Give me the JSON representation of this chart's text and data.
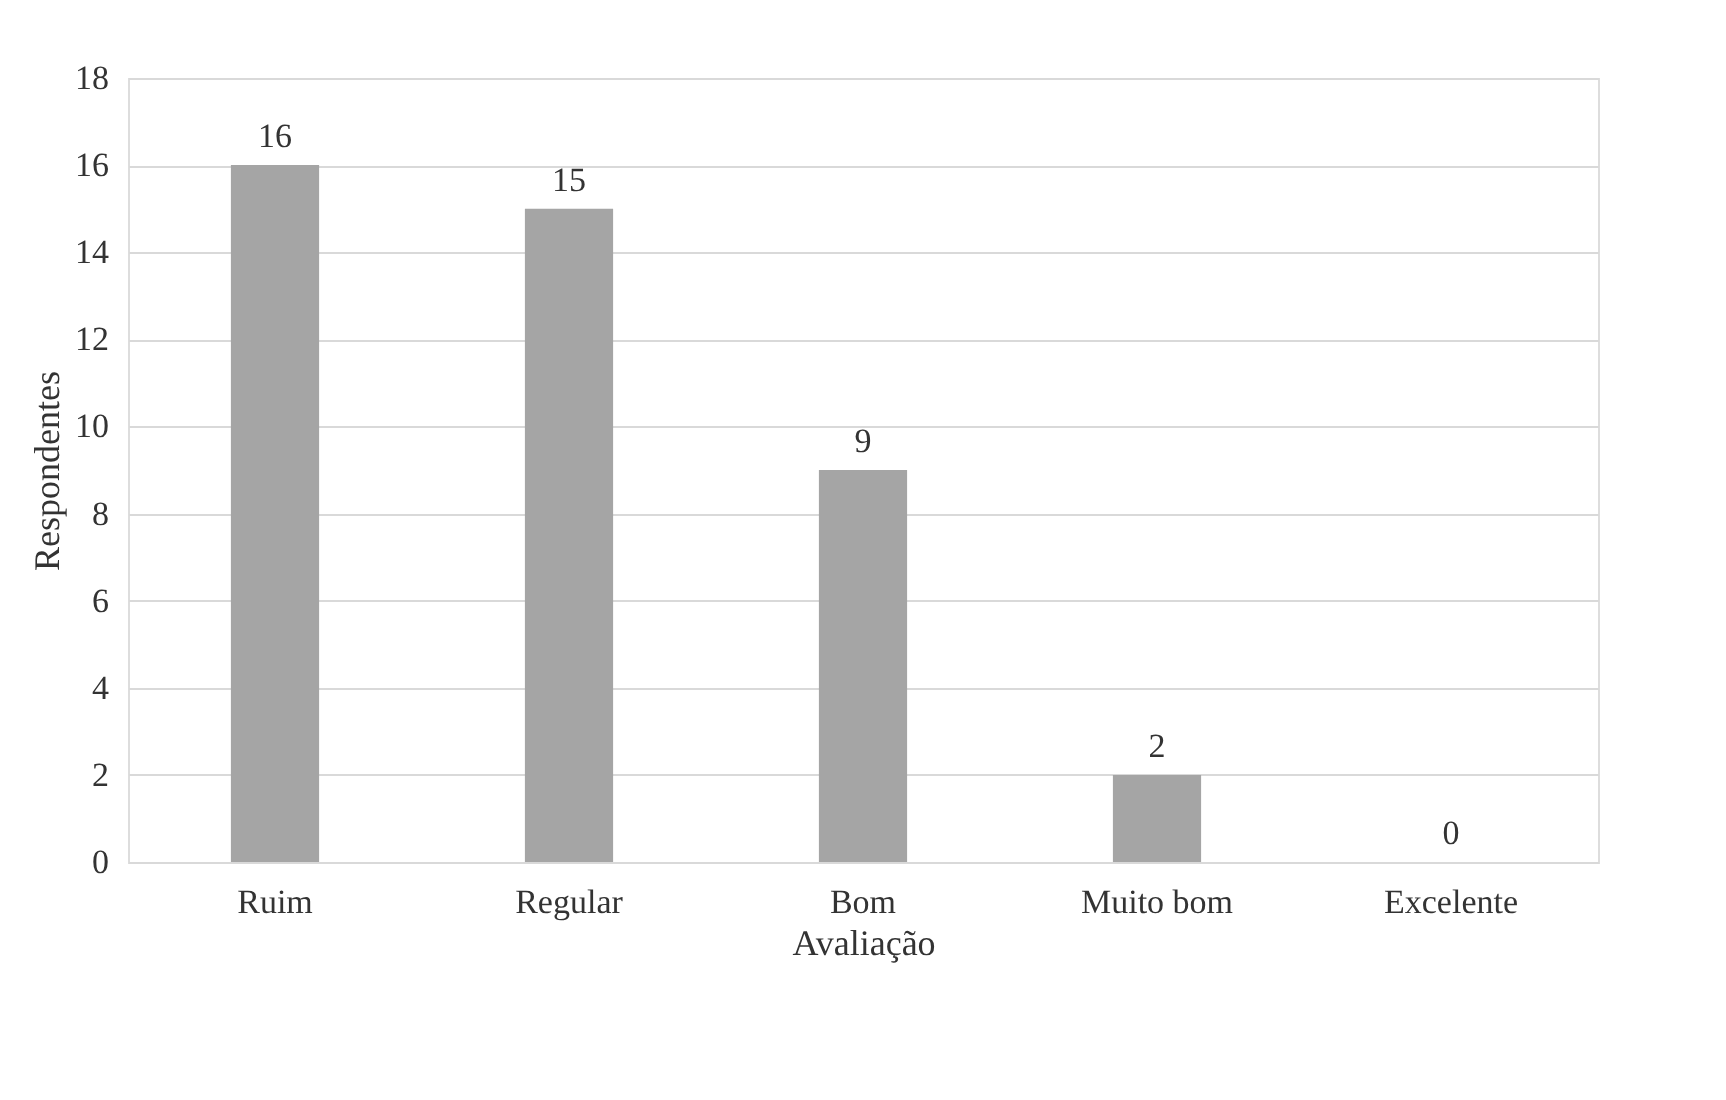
{
  "chart_data": {
    "type": "bar",
    "categories": [
      "Ruim",
      "Regular",
      "Bom",
      "Muito bom",
      "Excelente"
    ],
    "values": [
      16,
      15,
      9,
      2,
      0
    ],
    "color": "#a5a5a5",
    "xlabel": "Avaliação",
    "ylabel": "Respondentes",
    "ylim": [
      0,
      18
    ],
    "yticks": [
      0,
      2,
      4,
      6,
      8,
      10,
      12,
      14,
      16,
      18
    ],
    "grid": "y",
    "data_labels": true
  }
}
